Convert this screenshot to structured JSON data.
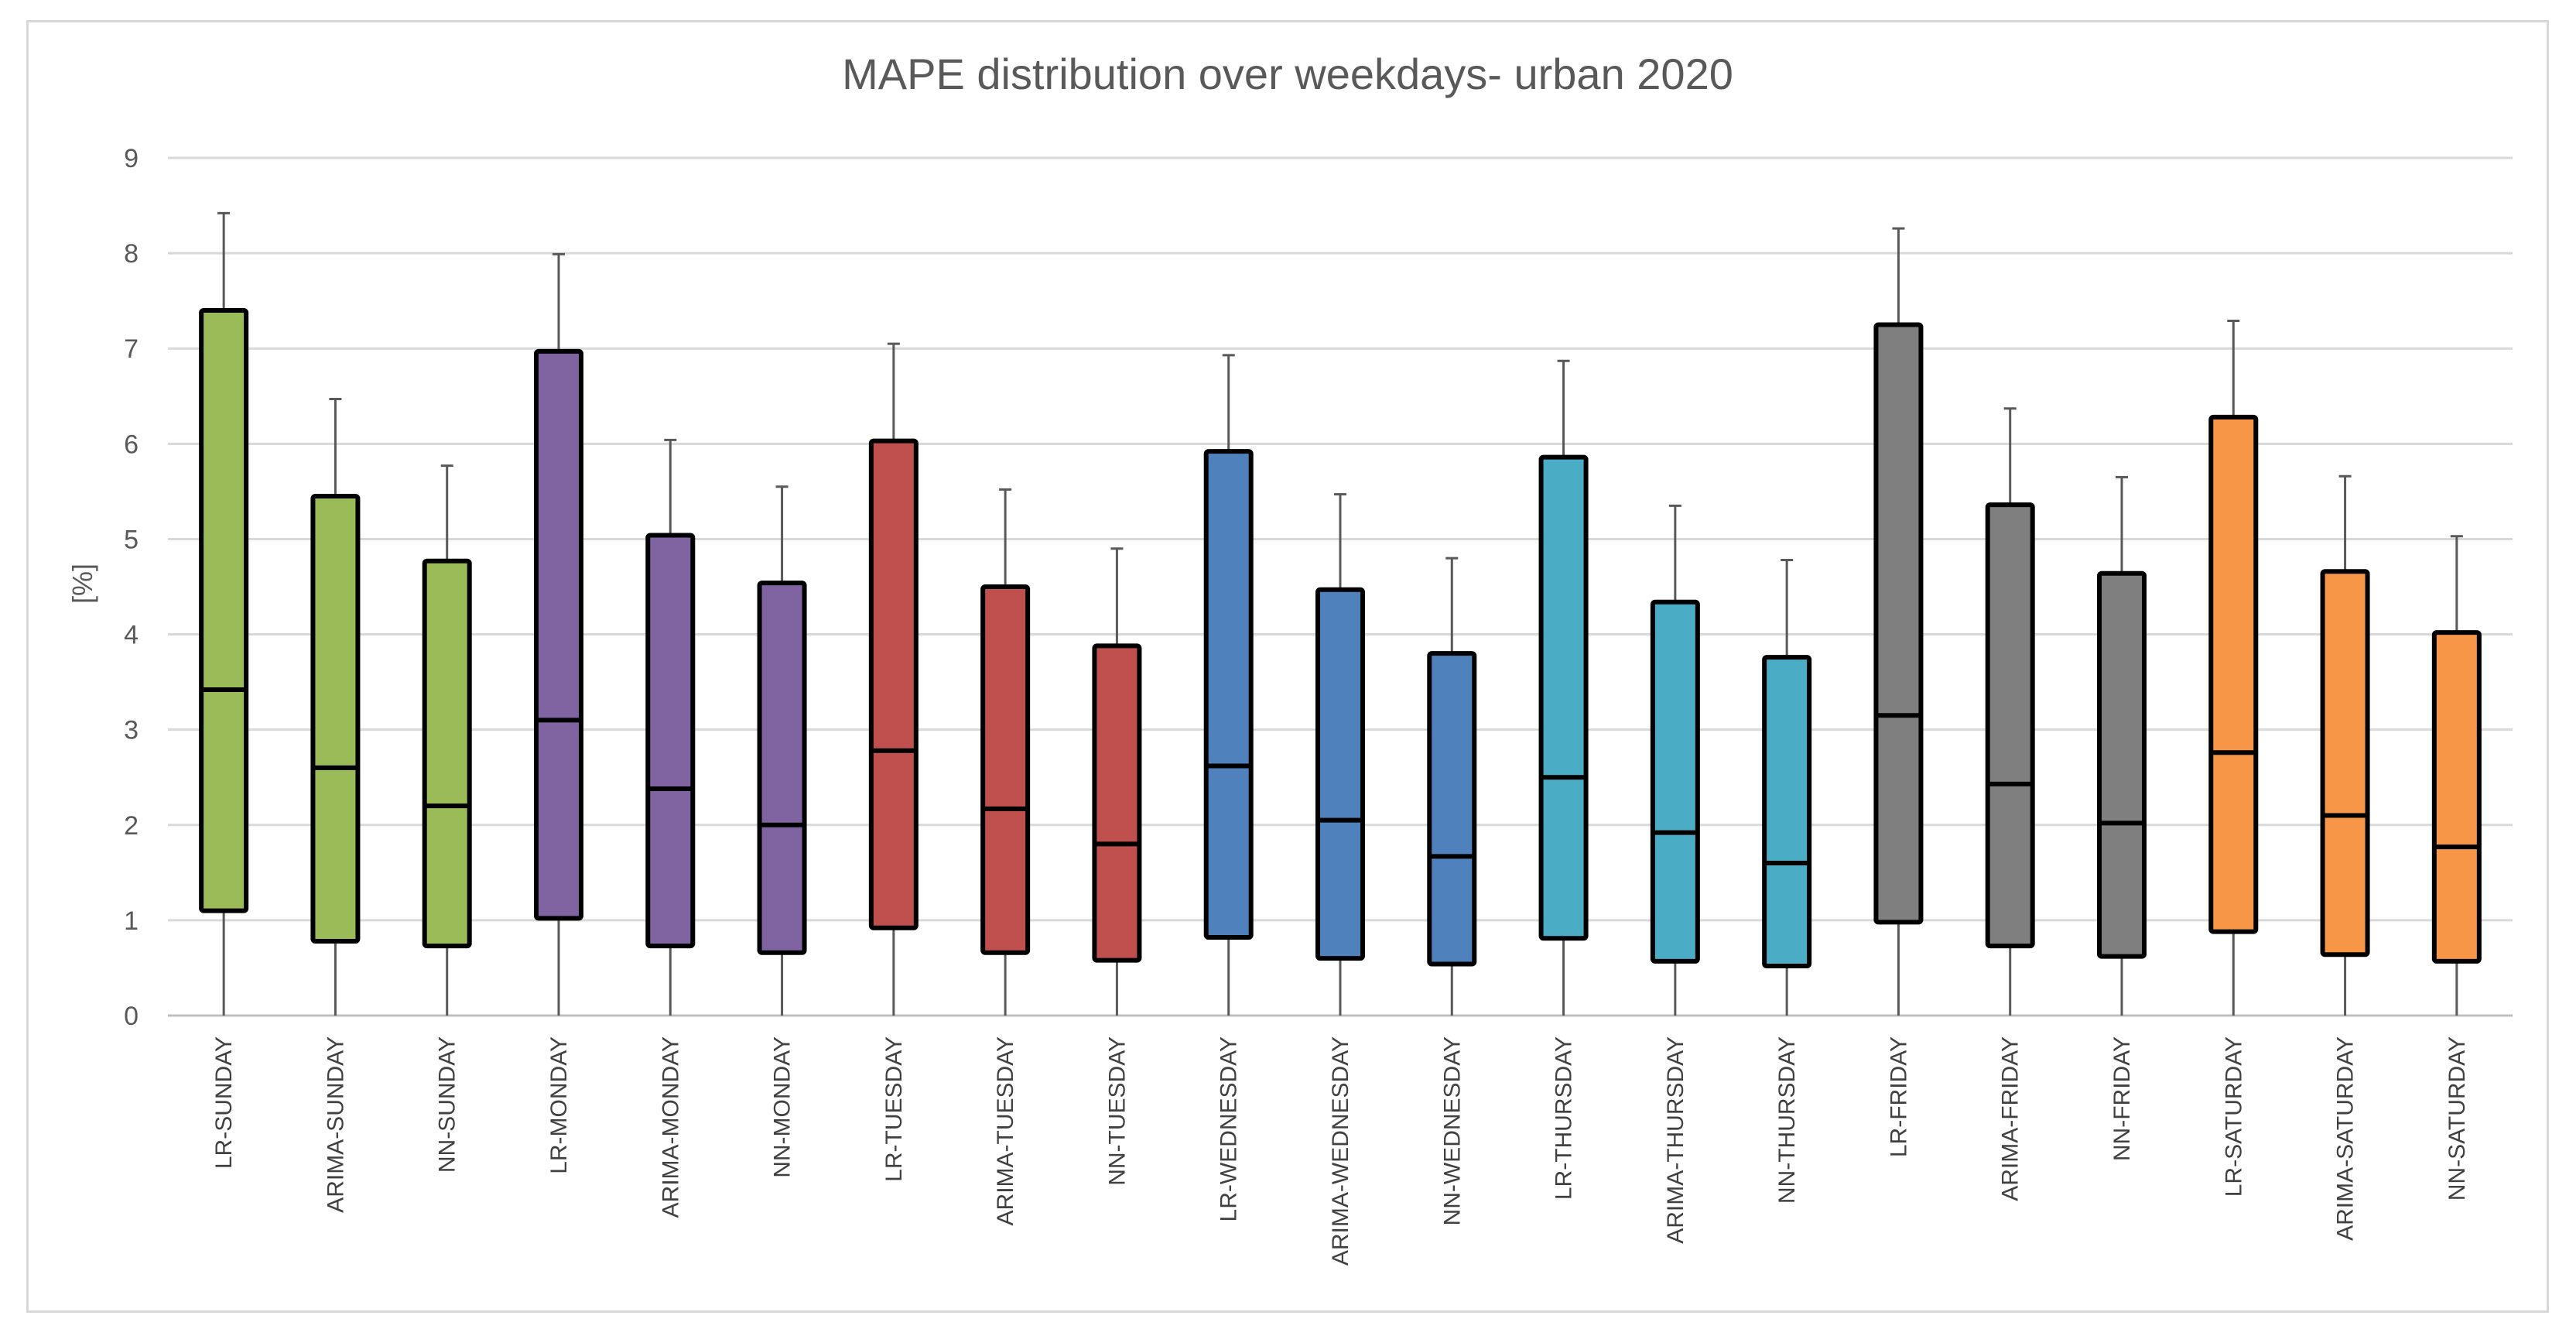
{
  "chart_data": {
    "type": "boxplot",
    "title": "MAPE distribution over weekdays- urban 2020",
    "xlabel": "",
    "ylabel": "[%]",
    "ylim": [
      0,
      9
    ],
    "yticks": [
      "0",
      "1",
      "2",
      "3",
      "4",
      "5",
      "6",
      "7",
      "8",
      "9"
    ],
    "grid": true,
    "categories": [
      "LR-SUNDAY",
      "ARIMA-SUNDAY",
      "NN-SUNDAY",
      "LR-MONDAY",
      "ARIMA-MONDAY",
      "NN-MONDAY",
      "LR-TUESDAY",
      "ARIMA-TUESDAY",
      "NN-TUESDAY",
      "LR-WEDNESDAY",
      "ARIMA-WEDNESDAY",
      "NN-WEDNESDAY",
      "LR-THURSDAY",
      "ARIMA-THURSDAY",
      "NN-THURSDAY",
      "LR-FRIDAY",
      "ARIMA-FRIDAY",
      "NN-FRIDAY",
      "LR-SATURDAY",
      "ARIMA-SATURDAY",
      "NN-SATURDAY"
    ],
    "boxes": [
      {
        "min": 0,
        "q1": 1.1,
        "median": 3.42,
        "q3": 7.4,
        "max": 8.42
      },
      {
        "min": 0,
        "q1": 0.78,
        "median": 2.6,
        "q3": 5.45,
        "max": 6.47
      },
      {
        "min": 0,
        "q1": 0.73,
        "median": 2.2,
        "q3": 4.77,
        "max": 5.77
      },
      {
        "min": 0,
        "q1": 1.02,
        "median": 3.1,
        "q3": 6.97,
        "max": 7.99
      },
      {
        "min": 0,
        "q1": 0.73,
        "median": 2.38,
        "q3": 5.04,
        "max": 6.04
      },
      {
        "min": 0,
        "q1": 0.66,
        "median": 2.0,
        "q3": 4.54,
        "max": 5.55
      },
      {
        "min": 0,
        "q1": 0.92,
        "median": 2.78,
        "q3": 6.03,
        "max": 7.05
      },
      {
        "min": 0,
        "q1": 0.66,
        "median": 2.17,
        "q3": 4.5,
        "max": 5.52
      },
      {
        "min": 0,
        "q1": 0.58,
        "median": 1.8,
        "q3": 3.88,
        "max": 4.9
      },
      {
        "min": 0,
        "q1": 0.82,
        "median": 2.62,
        "q3": 5.92,
        "max": 6.93
      },
      {
        "min": 0,
        "q1": 0.6,
        "median": 2.05,
        "q3": 4.47,
        "max": 5.47
      },
      {
        "min": 0,
        "q1": 0.54,
        "median": 1.67,
        "q3": 3.8,
        "max": 4.8
      },
      {
        "min": 0,
        "q1": 0.81,
        "median": 2.5,
        "q3": 5.86,
        "max": 6.87
      },
      {
        "min": 0,
        "q1": 0.57,
        "median": 1.92,
        "q3": 4.34,
        "max": 5.35
      },
      {
        "min": 0,
        "q1": 0.52,
        "median": 1.6,
        "q3": 3.76,
        "max": 4.78
      },
      {
        "min": 0,
        "q1": 0.98,
        "median": 3.15,
        "q3": 7.25,
        "max": 8.26
      },
      {
        "min": 0,
        "q1": 0.73,
        "median": 2.43,
        "q3": 5.36,
        "max": 6.37
      },
      {
        "min": 0,
        "q1": 0.62,
        "median": 2.02,
        "q3": 4.64,
        "max": 5.65
      },
      {
        "min": 0,
        "q1": 0.88,
        "median": 2.76,
        "q3": 6.28,
        "max": 7.29
      },
      {
        "min": 0,
        "q1": 0.64,
        "median": 2.1,
        "q3": 4.66,
        "max": 5.66
      },
      {
        "min": 0,
        "q1": 0.57,
        "median": 1.77,
        "q3": 4.02,
        "max": 5.03
      }
    ],
    "colors": [
      "#9bbb59",
      "#9bbb59",
      "#9bbb59",
      "#8064a2",
      "#8064a2",
      "#8064a2",
      "#c0504d",
      "#c0504d",
      "#c0504d",
      "#4f81bd",
      "#4f81bd",
      "#4f81bd",
      "#4bacc6",
      "#4bacc6",
      "#4bacc6",
      "#7f7f7f",
      "#7f7f7f",
      "#7f7f7f",
      "#f79646",
      "#f79646",
      "#f79646"
    ]
  }
}
